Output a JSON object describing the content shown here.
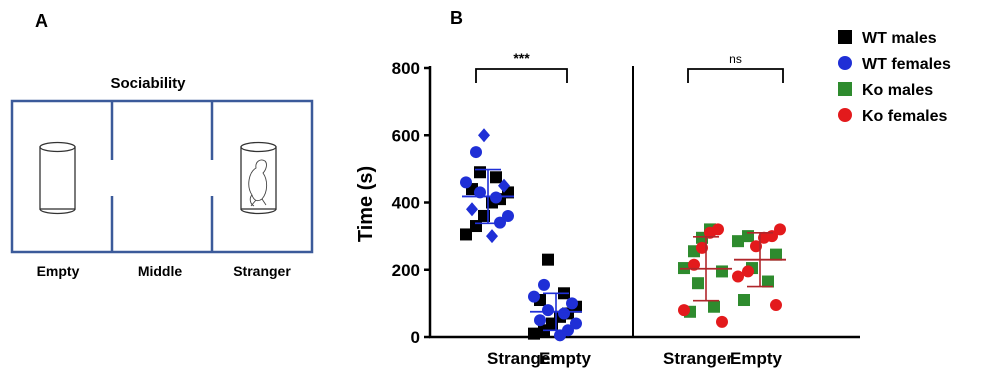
{
  "panel_a": {
    "letter": "A",
    "title": "Sociability",
    "chambers": [
      "Empty",
      "Middle",
      "Stranger"
    ],
    "border_color": "#3b5a9a"
  },
  "panel_b": {
    "letter": "B"
  },
  "chart_data": {
    "type": "scatter",
    "ylabel": "Time (s)",
    "ylim": [
      0,
      800
    ],
    "yticks": [
      0,
      200,
      400,
      600,
      800
    ],
    "categories": [
      "Stranger",
      "Empty",
      "Stranger",
      "Empty"
    ],
    "groups": [
      {
        "label": "WT",
        "stranger_mean": 418,
        "stranger_sd": 80,
        "empty_mean": 75,
        "empty_sd": 55,
        "errorbar_color": "#1f2fd6",
        "significance": "***"
      },
      {
        "label": "Ko",
        "stranger_mean": 203,
        "stranger_sd": 95,
        "empty_mean": 230,
        "empty_sd": 80,
        "errorbar_color": "#b0262b",
        "significance": "ns"
      }
    ],
    "legend_position": "top-right",
    "series": [
      {
        "name": "WT males",
        "marker": "square",
        "color": "#000000",
        "group": 0,
        "stranger": [
          305,
          330,
          360,
          400,
          410,
          430,
          440,
          475,
          490
        ],
        "empty": [
          10,
          20,
          40,
          60,
          70,
          90,
          110,
          130,
          230
        ]
      },
      {
        "name": "WT females",
        "marker": "circle",
        "color": "#1f2fd6",
        "group": 0,
        "stranger": [
          300,
          340,
          360,
          380,
          415,
          430,
          450,
          460,
          550,
          600
        ],
        "empty": [
          5,
          20,
          40,
          50,
          70,
          80,
          100,
          120,
          155
        ]
      },
      {
        "name": "Ko males",
        "marker": "square",
        "color": "#2e8b2e",
        "group": 1,
        "stranger": [
          75,
          90,
          160,
          195,
          205,
          255,
          295,
          320
        ],
        "empty": [
          110,
          165,
          205,
          245,
          285,
          300
        ]
      },
      {
        "name": "Ko females",
        "marker": "circle",
        "color": "#e31a1c",
        "group": 1,
        "stranger": [
          45,
          80,
          215,
          265,
          310,
          320
        ],
        "empty": [
          95,
          180,
          195,
          270,
          295,
          300,
          320
        ]
      }
    ]
  }
}
